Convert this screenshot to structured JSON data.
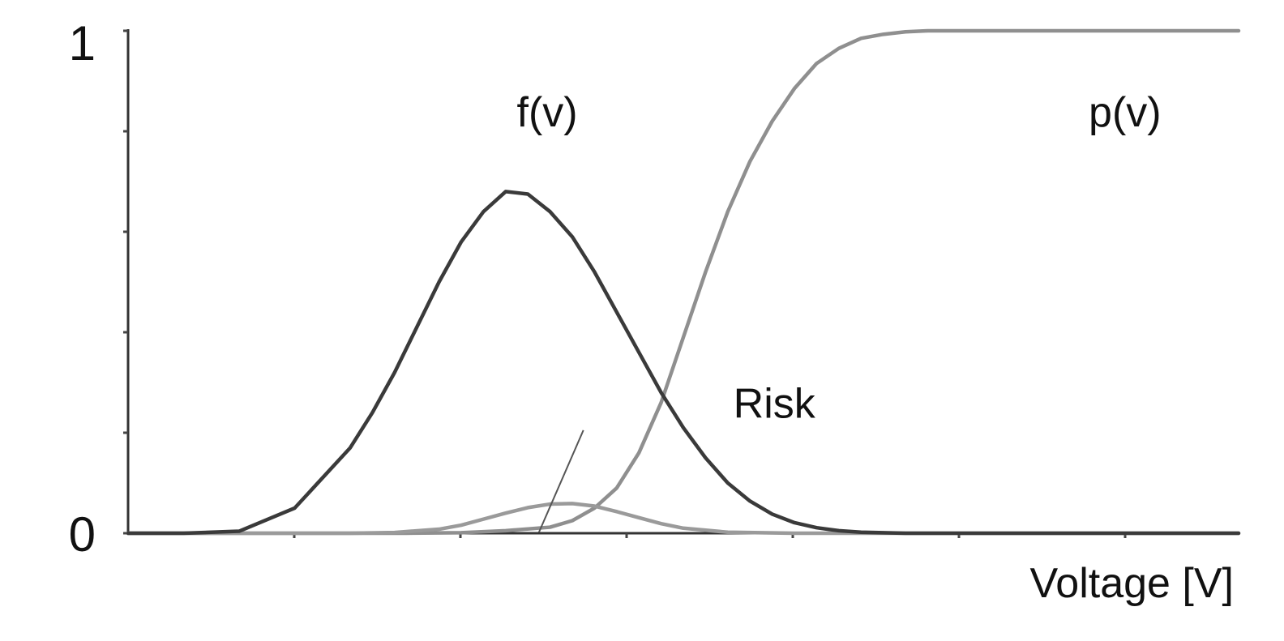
{
  "chart_data": {
    "type": "line",
    "title": "",
    "xlabel": "Voltage [V]",
    "ylabel": "",
    "xlim": [
      0,
      10
    ],
    "ylim": [
      0,
      1
    ],
    "y_tick_labels": [
      "0",
      "1"
    ],
    "grid": false,
    "colors": {
      "f": "#3a3a3a",
      "p": "#8f8f8f",
      "risk": "#9a9a9a",
      "axis": "#333333"
    },
    "series": [
      {
        "name": "f(v)",
        "label_anchor": [
          3.5,
          0.81
        ],
        "x": [
          0,
          0.5,
          1.0,
          1.5,
          2.0,
          2.2,
          2.4,
          2.6,
          2.8,
          3.0,
          3.2,
          3.4,
          3.6,
          3.8,
          4.0,
          4.2,
          4.4,
          4.6,
          4.8,
          5.0,
          5.2,
          5.4,
          5.6,
          5.8,
          6.0,
          6.2,
          6.4,
          6.6,
          6.8,
          7.0,
          7.5,
          8.0,
          8.5,
          9.0,
          9.5,
          10.0
        ],
        "y": [
          0,
          0,
          0.004,
          0.05,
          0.17,
          0.24,
          0.32,
          0.41,
          0.5,
          0.58,
          0.64,
          0.68,
          0.675,
          0.64,
          0.59,
          0.52,
          0.44,
          0.36,
          0.28,
          0.21,
          0.15,
          0.1,
          0.064,
          0.038,
          0.021,
          0.011,
          0.005,
          0.002,
          0.001,
          0,
          0,
          0,
          0,
          0,
          0,
          0
        ]
      },
      {
        "name": "p(v)",
        "label_anchor": [
          8.65,
          0.81
        ],
        "x": [
          0,
          1.0,
          2.0,
          2.5,
          3.0,
          3.4,
          3.8,
          4.0,
          4.2,
          4.4,
          4.6,
          4.8,
          5.0,
          5.2,
          5.4,
          5.6,
          5.8,
          6.0,
          6.2,
          6.4,
          6.6,
          6.8,
          7.0,
          7.2,
          7.5,
          8.0,
          9.0,
          10.0
        ],
        "y": [
          0,
          0,
          0,
          0,
          0.001,
          0.005,
          0.012,
          0.025,
          0.05,
          0.09,
          0.16,
          0.26,
          0.39,
          0.52,
          0.64,
          0.74,
          0.82,
          0.885,
          0.935,
          0.965,
          0.985,
          0.993,
          0.998,
          1.0,
          1.0,
          1.0,
          1.0,
          1.0
        ]
      },
      {
        "name": "Risk",
        "label_anchor": [
          5.45,
          0.23
        ],
        "pointer_from": [
          4.1,
          0.205
        ],
        "pointer_to": [
          3.7,
          0.002
        ],
        "x": [
          0,
          2.0,
          2.4,
          2.8,
          3.0,
          3.2,
          3.4,
          3.6,
          3.8,
          4.0,
          4.2,
          4.4,
          4.6,
          4.8,
          5.0,
          5.4,
          6.0,
          7.0,
          10.0
        ],
        "y": [
          0,
          0,
          0.0015,
          0.008,
          0.016,
          0.028,
          0.04,
          0.051,
          0.058,
          0.059,
          0.054,
          0.043,
          0.031,
          0.019,
          0.01,
          0.002,
          0,
          0,
          0
        ]
      }
    ]
  }
}
